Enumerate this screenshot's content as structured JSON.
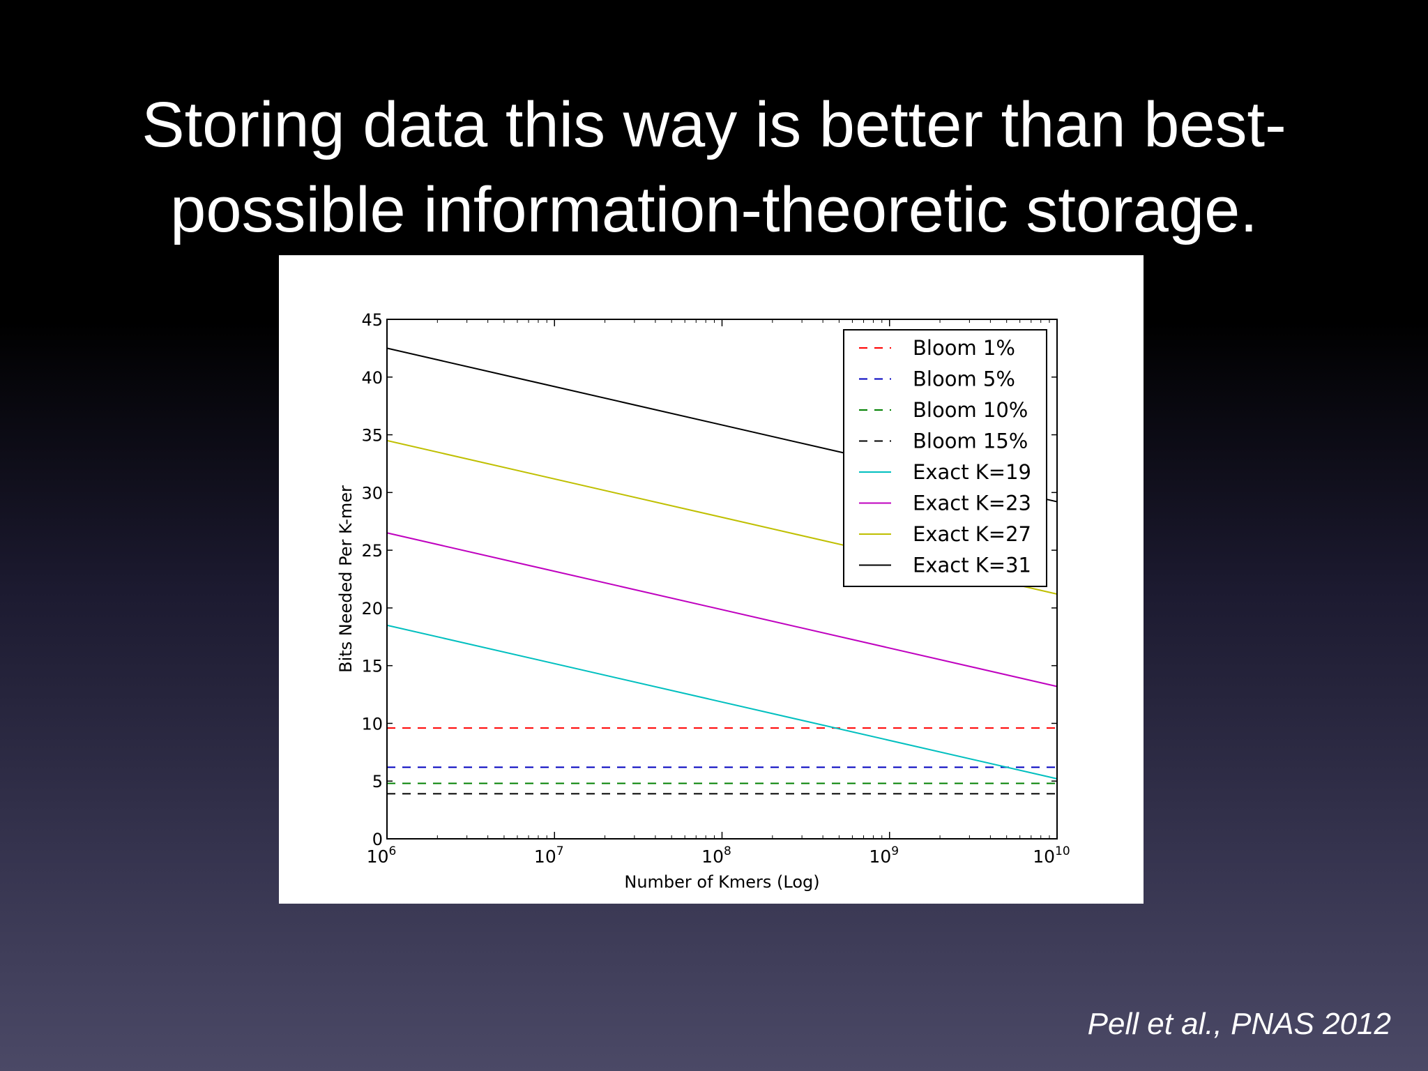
{
  "slide": {
    "title_line1": "Storing data this way is better than best-",
    "title_line2": "possible information-theoretic storage.",
    "citation": "Pell et al., PNAS 2012"
  },
  "chart_data": {
    "type": "line",
    "xlabel": "Number of Kmers (Log)",
    "ylabel": "Bits Needed Per K-mer",
    "xscale": "log",
    "xlim": [
      1000000,
      10000000000
    ],
    "ylim": [
      0,
      45
    ],
    "x_tick_exponents": [
      "6",
      "7",
      "8",
      "9",
      "10"
    ],
    "x_tick_base": "10",
    "y_ticks": [
      0,
      5,
      10,
      15,
      20,
      25,
      30,
      35,
      40,
      45
    ],
    "legend_position": "top-right",
    "grid": false,
    "series": [
      {
        "name": "Bloom 1%",
        "color": "#ff0000",
        "style": "dashed",
        "x": [
          1000000,
          10000000000
        ],
        "y": [
          9.6,
          9.6
        ]
      },
      {
        "name": "Bloom 5%",
        "color": "#0000bf",
        "style": "dashed",
        "x": [
          1000000,
          10000000000
        ],
        "y": [
          6.2,
          6.2
        ]
      },
      {
        "name": "Bloom 10%",
        "color": "#008000",
        "style": "dashed",
        "x": [
          1000000,
          10000000000
        ],
        "y": [
          4.8,
          4.8
        ]
      },
      {
        "name": "Bloom 15%",
        "color": "#000000",
        "style": "dashed",
        "x": [
          1000000,
          10000000000
        ],
        "y": [
          3.9,
          3.9
        ]
      },
      {
        "name": "Exact K=19",
        "color": "#00bfbf",
        "style": "solid",
        "x": [
          1000000,
          10000000000
        ],
        "y": [
          18.5,
          5.2
        ]
      },
      {
        "name": "Exact K=23",
        "color": "#bf00bf",
        "style": "solid",
        "x": [
          1000000,
          10000000000
        ],
        "y": [
          26.5,
          13.2
        ]
      },
      {
        "name": "Exact K=27",
        "color": "#bfbf00",
        "style": "solid",
        "x": [
          1000000,
          10000000000
        ],
        "y": [
          34.5,
          21.2
        ]
      },
      {
        "name": "Exact K=31",
        "color": "#000000",
        "style": "solid",
        "x": [
          1000000,
          10000000000
        ],
        "y": [
          42.5,
          29.2
        ]
      }
    ]
  }
}
